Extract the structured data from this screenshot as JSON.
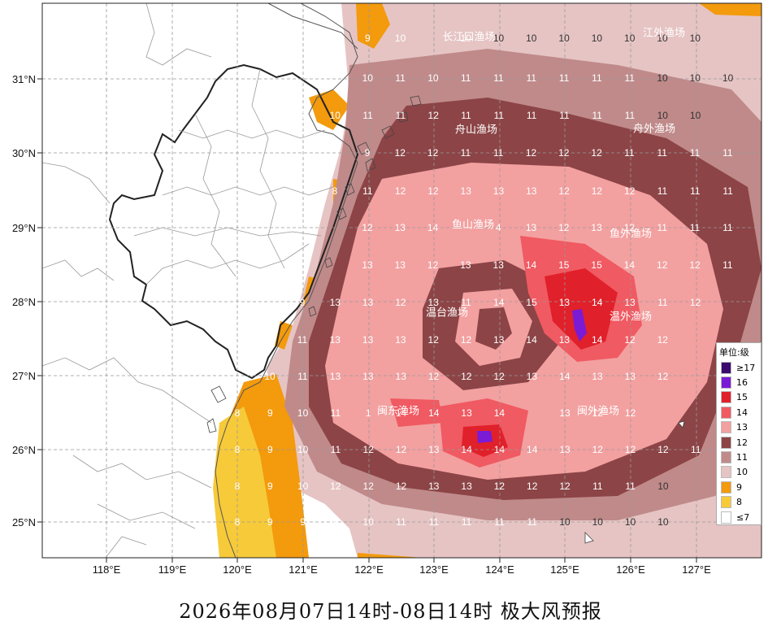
{
  "caption": "2026年08月07日14时-08日14时 极大风预报",
  "axes": {
    "x_ticks": [
      "118°E",
      "119°E",
      "120°E",
      "121°E",
      "122°E",
      "123°E",
      "124°E",
      "125°E",
      "126°E",
      "127°E"
    ],
    "y_ticks": [
      "31°N",
      "30°N",
      "29°N",
      "28°N",
      "27°N",
      "26°N",
      "25°N"
    ]
  },
  "legend": {
    "title": "单位:级",
    "items": [
      {
        "label": "≥17",
        "color": "#3a0a6e"
      },
      {
        "label": "16",
        "color": "#7a1bd6"
      },
      {
        "label": "15",
        "color": "#e0202a"
      },
      {
        "label": "14",
        "color": "#f05a62"
      },
      {
        "label": "13",
        "color": "#f3a0a0"
      },
      {
        "label": "12",
        "color": "#8c4446"
      },
      {
        "label": "11",
        "color": "#c08a8a"
      },
      {
        "label": "10",
        "color": "#e6c4c4"
      },
      {
        "label": "9",
        "color": "#f39a0d"
      },
      {
        "label": "8",
        "color": "#f7ca3a"
      },
      {
        "label": "≤7",
        "color": "#ffffff"
      }
    ]
  },
  "zones": [
    "长江口渔场",
    "江外渔场",
    "舟山渔场",
    "舟外渔场",
    "鱼山渔场",
    "鱼外渔场",
    "温台渔场",
    "温外渔场",
    "闽东渔场",
    "闽外渔场"
  ],
  "grid_rows": [
    [
      "8",
      "9",
      "10",
      "",
      "10",
      "10",
      "10",
      "10",
      "10",
      "10",
      "10",
      "10"
    ],
    [
      "",
      "10",
      "11",
      "10",
      "11",
      "11",
      "11",
      "11",
      "11",
      "11",
      "10",
      "10",
      "10"
    ],
    [
      "8",
      "10",
      "11",
      "11",
      "12",
      "11",
      "11",
      "11",
      "11",
      "11",
      "11",
      "10",
      "10"
    ],
    [
      "9",
      "12",
      "12",
      "11",
      "11",
      "12",
      "12",
      "12",
      "11",
      "11",
      "11",
      "11"
    ],
    [
      "8",
      "11",
      "12",
      "12",
      "13",
      "13",
      "13",
      "12",
      "12",
      "12",
      "11",
      "11",
      "11"
    ],
    [
      "12",
      "13",
      "14",
      "",
      "4",
      "13",
      "12",
      "13",
      "12",
      "11",
      "11",
      "11"
    ],
    [
      "13",
      "13",
      "12",
      "13",
      "13",
      "14",
      "15",
      "15",
      "14",
      "12",
      "12",
      "11"
    ],
    [
      "9",
      "13",
      "13",
      "12",
      "13",
      "11",
      "14",
      "15",
      "13",
      "14",
      "13",
      "11",
      "12"
    ],
    [
      "11",
      "13",
      "13",
      "13",
      "12",
      "12",
      "13",
      "14",
      "13",
      "14",
      "12",
      "12"
    ],
    [
      "10",
      "11",
      "13",
      "13",
      "13",
      "12",
      "12",
      "12",
      "13",
      "14",
      "13",
      "13",
      "12"
    ],
    [
      "8",
      "9",
      "10",
      "11",
      "1",
      "14",
      "14",
      "13",
      "14",
      "",
      "13",
      "12",
      "12"
    ],
    [
      "8",
      "9",
      "10",
      "11",
      "12",
      "12",
      "13",
      "14",
      "14",
      "14",
      "13",
      "12",
      "12",
      "12",
      "11"
    ],
    [
      "8",
      "9",
      "10",
      "12",
      "12",
      "12",
      "13",
      "13",
      "12",
      "12",
      "12",
      "11",
      "11",
      "10"
    ],
    [
      "8",
      "9",
      "9",
      "9",
      "10",
      "11",
      "11",
      "11",
      "11",
      "11",
      "10",
      "10",
      "10",
      "10"
    ]
  ]
}
